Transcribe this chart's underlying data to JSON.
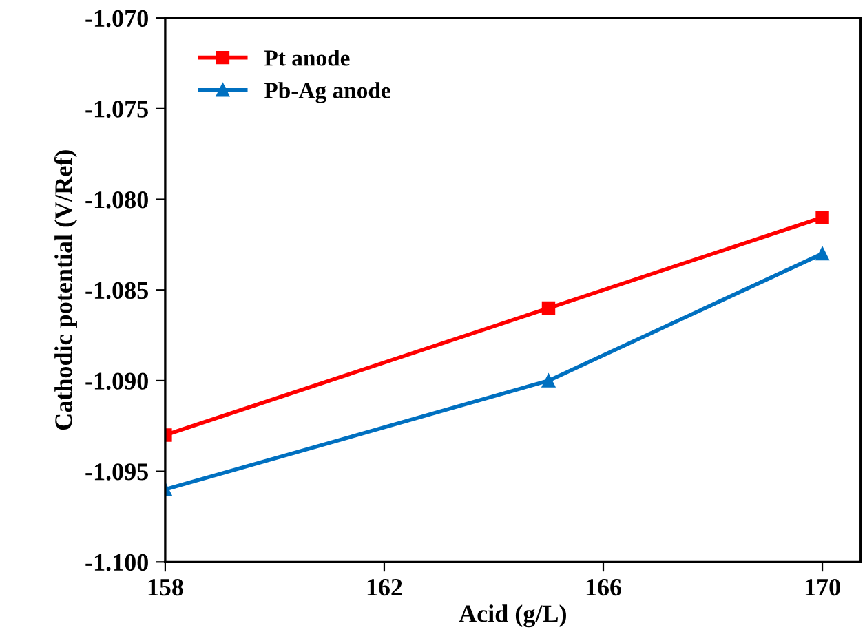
{
  "chart_data": {
    "type": "line",
    "xlabel": "Acid (g/L)",
    "ylabel": "Cathodic potential (V/Ref)",
    "x": [
      158,
      165,
      170
    ],
    "series": [
      {
        "name": "Pt anode",
        "color": "#ff0000",
        "marker": "square",
        "values": [
          -1.093,
          -1.086,
          -1.081
        ]
      },
      {
        "name": "Pb-Ag anode",
        "color": "#0070c0",
        "marker": "triangle",
        "values": [
          -1.096,
          -1.09,
          -1.083
        ]
      }
    ],
    "xlim": [
      158,
      170.7
    ],
    "xticks": [
      158,
      162,
      166,
      170
    ],
    "ylim": [
      -1.1,
      -1.07
    ],
    "yticks": [
      {
        "value": -1.1,
        "label": "-1.100"
      },
      {
        "value": -1.095,
        "label": "-1.095"
      },
      {
        "value": -1.09,
        "label": "-1.090"
      },
      {
        "value": -1.085,
        "label": "-1.085"
      },
      {
        "value": -1.08,
        "label": "-1.080"
      },
      {
        "value": -1.075,
        "label": "-1.075"
      },
      {
        "value": -1.07,
        "label": "-1.070"
      }
    ],
    "grid": false,
    "legend": "top left",
    "line_style": "solid"
  }
}
